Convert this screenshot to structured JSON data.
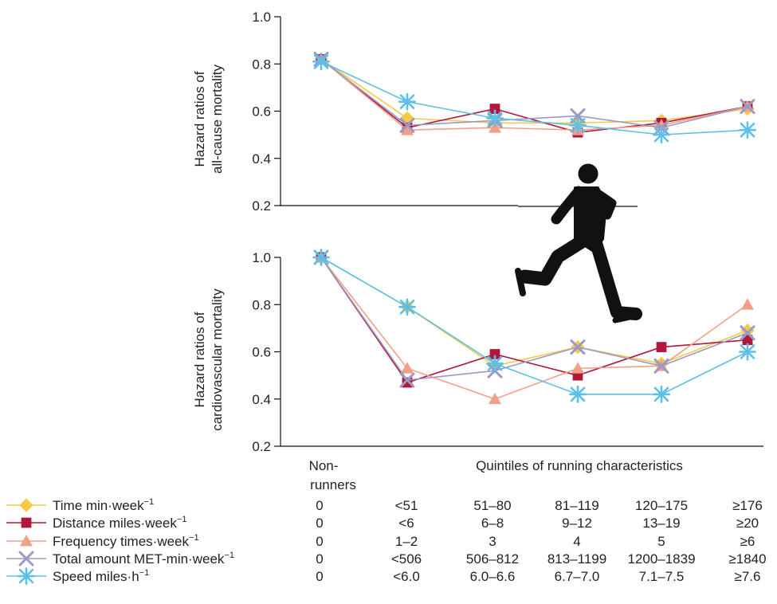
{
  "chart_data": [
    {
      "type": "line",
      "ylabel": "Hazard ratios of all-cause mortality",
      "ylabel_lines": [
        "Hazard ratios of",
        "all-cause mortality"
      ],
      "ylim": [
        0.2,
        1.0
      ],
      "yticks": [
        "0.2",
        "0.4",
        "0.6",
        "0.8",
        "1.0"
      ],
      "categories": [
        "Non-runners",
        "Q1",
        "Q2",
        "Q3",
        "Q4",
        "Q5"
      ],
      "grid": false,
      "series": [
        {
          "name": "Time min·week⁻¹",
          "values": [
            0.82,
            0.57,
            0.55,
            0.55,
            0.56,
            0.61
          ]
        },
        {
          "name": "Distance miles·week⁻¹",
          "values": [
            0.82,
            0.53,
            0.61,
            0.51,
            0.55,
            0.62
          ]
        },
        {
          "name": "Frequency times·week⁻¹",
          "values": [
            0.82,
            0.52,
            0.53,
            0.52,
            0.54,
            0.62
          ]
        },
        {
          "name": "Total amount MET-min·week⁻¹",
          "values": [
            0.82,
            0.54,
            0.56,
            0.58,
            0.53,
            0.62
          ]
        },
        {
          "name": "Speed miles·h⁻¹",
          "values": [
            0.81,
            0.64,
            0.57,
            0.54,
            0.5,
            0.52
          ]
        }
      ]
    },
    {
      "type": "line",
      "ylabel": "Hazard ratios of cardiovascular mortality",
      "ylabel_lines": [
        "Hazard ratios of",
        "cardiovascular mortality"
      ],
      "ylim": [
        0.2,
        1.0
      ],
      "yticks": [
        "0.2",
        "0.4",
        "0.6",
        "0.8",
        "1.0"
      ],
      "categories": [
        "Non-runners",
        "Q1",
        "Q2",
        "Q3",
        "Q4",
        "Q5"
      ],
      "grid": false,
      "series": [
        {
          "name": "Time min·week⁻¹",
          "values": [
            1.0,
            0.79,
            0.54,
            0.62,
            0.55,
            0.69
          ]
        },
        {
          "name": "Distance miles·week⁻¹",
          "values": [
            1.0,
            0.47,
            0.59,
            0.5,
            0.62,
            0.65
          ]
        },
        {
          "name": "Frequency times·week⁻¹",
          "values": [
            1.0,
            0.53,
            0.4,
            0.53,
            0.54,
            0.8
          ]
        },
        {
          "name": "Total amount MET-min·week⁻¹",
          "values": [
            1.0,
            0.48,
            0.52,
            0.62,
            0.54,
            0.68
          ]
        },
        {
          "name": "Speed miles·h⁻¹",
          "values": [
            1.0,
            0.79,
            0.55,
            0.42,
            0.42,
            0.6
          ]
        }
      ]
    }
  ],
  "x_axis": {
    "nonrunners_lines": [
      "Non-",
      "runners"
    ],
    "quintile_title": "Quintiles of running characteristics"
  },
  "legend": [
    {
      "label": "Time min·week",
      "sup": "−1",
      "color": "#f7c948",
      "marker": "diamond",
      "cells": [
        "0",
        "<51",
        "51–80",
        "81–119",
        "120–175",
        "≥176"
      ]
    },
    {
      "label": "Distance miles·week",
      "sup": "−1",
      "color": "#b0173a",
      "marker": "square",
      "cells": [
        "0",
        "<6",
        "6–8",
        "9–12",
        "13–19",
        "≥20"
      ]
    },
    {
      "label": "Frequency times·week",
      "sup": "−1",
      "color": "#f0a088",
      "marker": "triangle",
      "cells": [
        "0",
        "1–2",
        "3",
        "4",
        "5",
        "≥6"
      ]
    },
    {
      "label": "Total amount MET-min·week",
      "sup": "−1",
      "color": "#9a9ac4",
      "marker": "x",
      "cells": [
        "0",
        "<506",
        "506–812",
        "813–1199",
        "1200–1839",
        "≥1840"
      ]
    },
    {
      "label": "Speed miles·h",
      "sup": "−1",
      "color": "#5ec0e8",
      "marker": "asterisk",
      "cells": [
        "0",
        "<6.0",
        "6.0–6.6",
        "6.7–7.0",
        "7.1–7.5",
        "≥7.6"
      ]
    }
  ]
}
